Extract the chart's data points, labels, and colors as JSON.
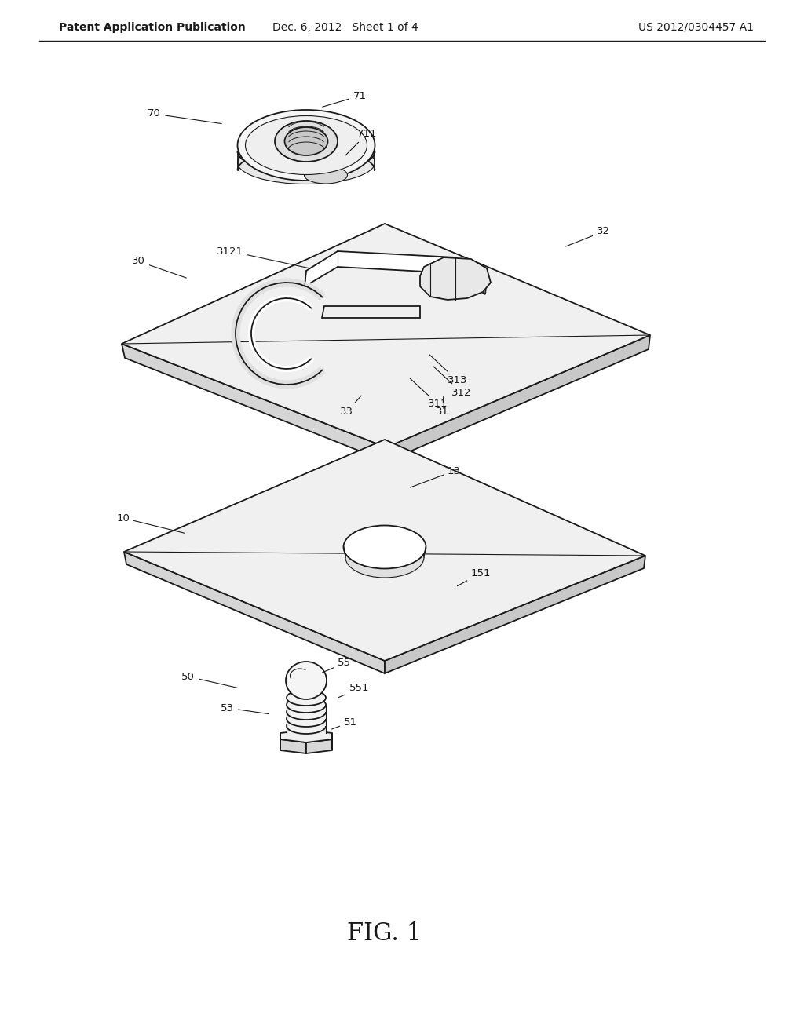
{
  "header_left": "Patent Application Publication",
  "header_center": "Dec. 6, 2012   Sheet 1 of 4",
  "header_right": "US 2012/0304457 A1",
  "figure_label": "FIG. 1",
  "background_color": "#ffffff",
  "line_color": "#1a1a1a",
  "header_fontsize": 10,
  "label_fontsize": 9.5,
  "figure_label_fontsize": 22
}
